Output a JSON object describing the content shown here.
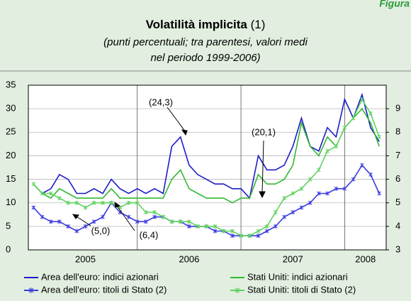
{
  "chart_data": {
    "type": "line",
    "figure_label": "Figura",
    "title": "Volatilità implicita",
    "title_note": "(1)",
    "subtitle": [
      "(punti percentuali; tra parentesi, valori medi",
      "nel periodo 1999-2006)"
    ],
    "x": [
      2005.0,
      2005.083,
      2005.167,
      2005.25,
      2005.333,
      2005.417,
      2005.5,
      2005.583,
      2005.667,
      2005.75,
      2005.833,
      2005.917,
      2006.0,
      2006.083,
      2006.167,
      2006.25,
      2006.333,
      2006.417,
      2006.5,
      2006.583,
      2006.667,
      2006.75,
      2006.833,
      2006.917,
      2007.0,
      2007.083,
      2007.167,
      2007.25,
      2007.333,
      2007.417,
      2007.5,
      2007.583,
      2007.667,
      2007.75,
      2007.833,
      2007.917,
      2008.0,
      2008.083,
      2008.167,
      2008.25,
      2008.333
    ],
    "xlim": [
      2004.95,
      2008.4
    ],
    "xticks": [
      {
        "value": 2005.5,
        "label": "2005"
      },
      {
        "value": 2006.5,
        "label": "2006"
      },
      {
        "value": 2007.5,
        "label": "2007"
      },
      {
        "value": 2008.2,
        "label": "2008"
      }
    ],
    "xgrid": [
      2006,
      2007,
      2008
    ],
    "ylim": [
      0,
      35
    ],
    "yticks": [
      0,
      5,
      10,
      15,
      20,
      25,
      30,
      35
    ],
    "y2lim": [
      3,
      10
    ],
    "y2ticks": [
      3,
      4,
      5,
      6,
      7,
      8,
      9
    ],
    "grid": true,
    "series": [
      {
        "name": "Area dell'euro: indici azionari",
        "color": "#1c1cc8",
        "marker": false,
        "values": [
          14,
          12,
          13,
          16,
          15,
          12,
          12,
          13,
          12,
          15,
          13,
          12,
          13,
          12,
          13,
          12,
          22,
          24,
          18,
          16,
          15,
          14,
          14,
          13,
          13,
          11,
          20,
          17,
          17,
          18,
          22,
          28,
          22,
          21,
          26,
          24,
          32,
          28,
          33,
          26,
          23
        ]
      },
      {
        "name": "Area dell'euro: titoli di Stato (2)",
        "color": "#3a3ae0",
        "marker": true,
        "axis": "y2",
        "values": [
          4.8,
          4.4,
          4.2,
          4.2,
          4,
          3.8,
          4,
          4.2,
          4.4,
          5,
          4.6,
          4.4,
          4.2,
          4.2,
          4.4,
          4.4,
          4.2,
          4.2,
          4,
          4,
          4,
          3.8,
          3.8,
          3.6,
          3.6,
          3.6,
          3.6,
          3.8,
          4,
          4.4,
          4.6,
          4.8,
          5,
          5.4,
          5.4,
          5.6,
          5.6,
          6,
          6.6,
          6.2,
          5.4
        ]
      },
      {
        "name": "Stati Uniti: indici azionari",
        "color": "#33b833",
        "marker": false,
        "values": [
          14,
          12,
          11,
          13,
          12,
          11,
          11,
          11,
          11,
          13,
          11,
          11,
          11,
          11,
          11,
          11,
          15,
          17,
          13,
          12,
          11,
          11,
          11,
          10,
          11,
          11,
          16,
          14,
          14,
          15,
          18,
          27,
          22,
          20,
          24,
          22,
          26,
          28,
          30,
          27,
          22
        ]
      },
      {
        "name": "Stati Uniti: titoli di Stato (2)",
        "color": "#5ed35e",
        "marker": true,
        "axis": "y2",
        "values": [
          5.8,
          5.4,
          5.4,
          5.2,
          5,
          5,
          4.8,
          5,
          5,
          5,
          4.8,
          5,
          5,
          4.6,
          4.6,
          4.4,
          4.2,
          4.2,
          4.2,
          4,
          4,
          4,
          3.8,
          3.8,
          3.6,
          3.6,
          3.8,
          4,
          4.6,
          5.2,
          5.4,
          5.6,
          6,
          6.4,
          7.2,
          7.4,
          8.2,
          8.6,
          9.4,
          8.8,
          7.8
        ]
      }
    ],
    "annotations": [
      "(24,3)",
      "(20,1)",
      "(5,0)",
      "(6,4)"
    ]
  }
}
